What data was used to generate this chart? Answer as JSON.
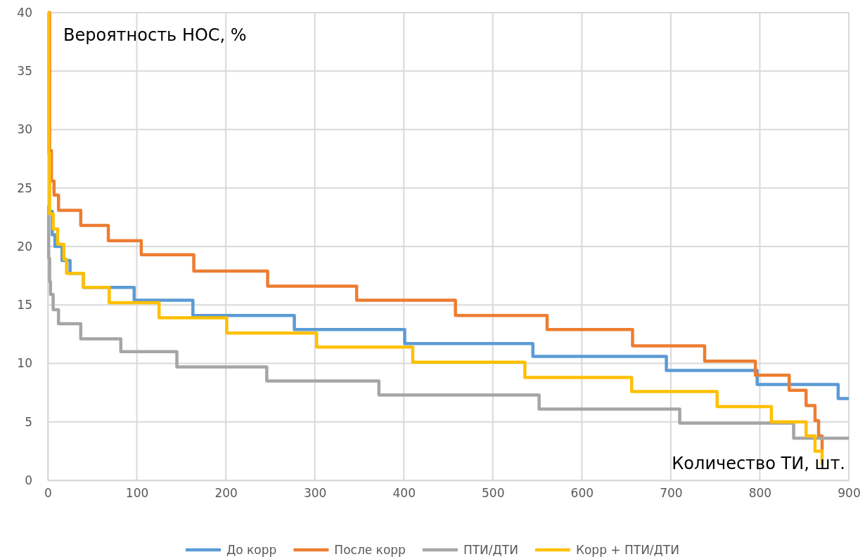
{
  "chart_data": {
    "type": "step",
    "xlabel": "Количество ТИ, шт.",
    "ylabel": "Вероятность НОС, %",
    "xlim": [
      0,
      900
    ],
    "xticks": [
      0,
      100,
      200,
      300,
      400,
      500,
      600,
      700,
      800,
      900
    ],
    "ylim": [
      0,
      40
    ],
    "yticks": [
      0,
      5,
      10,
      15,
      20,
      25,
      30,
      35,
      40
    ],
    "grid": true,
    "legend": "bottom",
    "marker": "none",
    "line_style": "solid",
    "series": [
      {
        "name": "До корр",
        "color": "#5b9bd5",
        "x": [
          2,
          5,
          8,
          16,
          25,
          40,
          97,
          163,
          277,
          401,
          545,
          695,
          797,
          888,
          900
        ],
        "values": [
          23,
          21,
          20,
          18.8,
          17.7,
          16.5,
          15.4,
          14.1,
          12.9,
          11.7,
          10.6,
          9.4,
          8.2,
          7.0,
          7.0
        ]
      },
      {
        "name": "После корр",
        "color": "#ed7d31",
        "x": [
          0,
          2,
          4,
          7,
          12,
          37,
          68,
          105,
          164,
          247,
          347,
          458,
          561,
          657,
          738,
          795,
          833,
          852,
          862,
          866,
          870
        ],
        "values": [
          40,
          28.2,
          25.6,
          24.4,
          23.1,
          21.8,
          20.5,
          19.3,
          17.9,
          16.6,
          15.4,
          14.1,
          12.9,
          11.5,
          10.2,
          9.0,
          7.7,
          6.4,
          5.1,
          3.8,
          2.6
        ]
      },
      {
        "name": "ПТИ/ДТИ",
        "color": "#a5a5a5",
        "x": [
          0,
          1,
          2,
          3,
          6,
          12,
          37,
          82,
          145,
          246,
          372,
          552,
          710,
          838,
          900
        ],
        "values": [
          23.5,
          19,
          17,
          15.9,
          14.6,
          13.4,
          12.1,
          11.0,
          9.7,
          8.5,
          7.3,
          6.1,
          4.9,
          3.6,
          3.6
        ]
      },
      {
        "name": "Корр + ПТИ/ДТИ",
        "color": "#ffc000",
        "x": [
          0,
          1,
          2,
          6,
          11,
          18,
          21,
          40,
          69,
          125,
          201,
          302,
          410,
          536,
          656,
          752,
          813,
          852,
          862,
          870
        ],
        "values": [
          40,
          28,
          22.8,
          21.5,
          20.2,
          18.9,
          17.7,
          16.5,
          15.2,
          13.9,
          12.6,
          11.4,
          10.1,
          8.8,
          7.6,
          6.3,
          5.0,
          3.8,
          2.5,
          1.3
        ]
      }
    ]
  }
}
